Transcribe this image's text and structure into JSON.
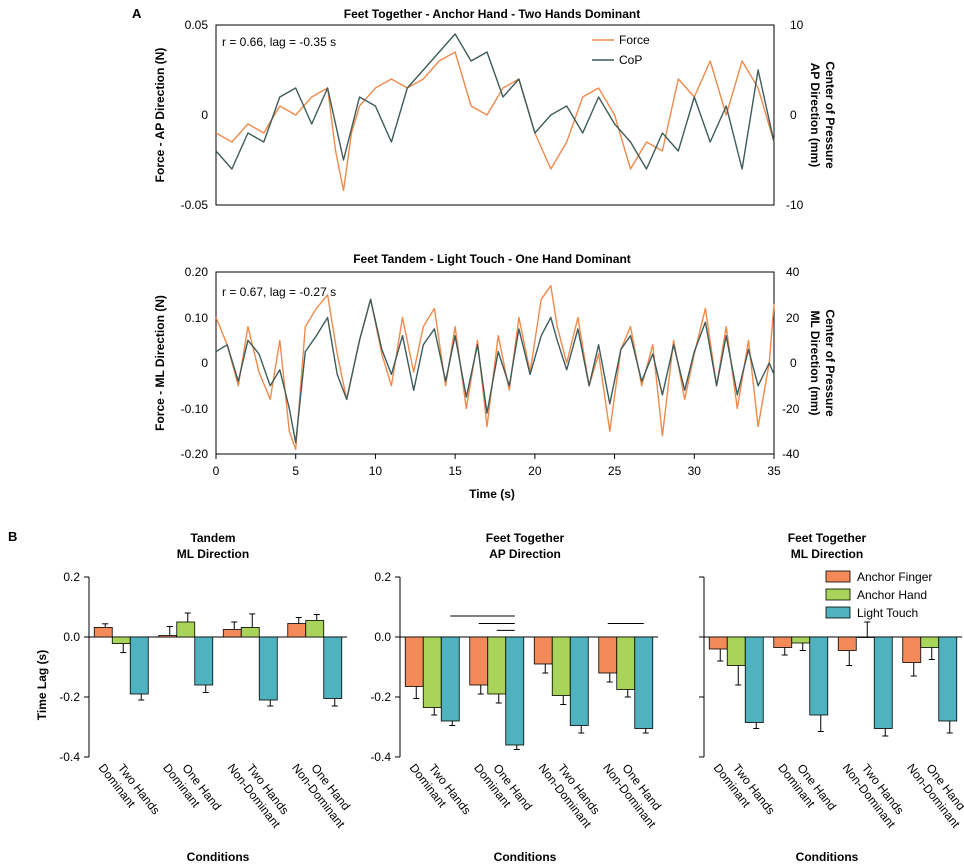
{
  "panel_labels": {
    "a": "A",
    "b": "B"
  },
  "colors": {
    "force": "#f08a4b",
    "cop": "#3e5c5b",
    "anchor_finger": "#f4895a",
    "anchor_hand": "#a9d45b",
    "light_touch": "#4fb3bf",
    "axis": "#000000"
  },
  "chart_data": [
    {
      "type": "line",
      "title": "Feet Together - Anchor Hand - Two Hands Dominant",
      "annotation": "r = 0.66, lag = -0.35 s",
      "ylabel_left": "Force - AP Direction (N)",
      "ylabel_right": [
        "Center of Pressure",
        "AP Direction (mm)"
      ],
      "ylim_left": [
        -0.05,
        0.05
      ],
      "ylim_right": [
        -10,
        10
      ],
      "yticks_left": [
        "0.05",
        "0",
        "-0.05"
      ],
      "yticks_right": [
        "10",
        "0",
        "-10"
      ],
      "xlim": [
        0,
        35
      ],
      "legend": [
        "Force",
        "CoP"
      ],
      "series": [
        {
          "name": "Force",
          "axis": "left",
          "t": [
            0,
            1,
            2,
            3,
            4,
            5,
            6,
            7,
            7.5,
            8,
            8.5,
            9,
            10,
            11,
            12,
            13,
            14,
            15,
            16,
            17,
            18,
            19,
            20,
            21,
            22,
            23,
            24,
            25,
            26,
            27,
            28,
            29,
            30,
            31,
            32,
            33,
            34,
            35
          ],
          "values": [
            -0.01,
            -0.015,
            -0.005,
            -0.01,
            0.005,
            0.0,
            0.01,
            0.015,
            -0.02,
            -0.042,
            -0.01,
            0.005,
            0.015,
            0.02,
            0.015,
            0.02,
            0.03,
            0.035,
            0.005,
            0.0,
            0.015,
            0.02,
            -0.01,
            -0.03,
            -0.015,
            0.01,
            0.015,
            0.0,
            -0.03,
            -0.015,
            -0.02,
            0.02,
            0.01,
            0.03,
            0.0,
            0.03,
            0.015,
            -0.015
          ]
        },
        {
          "name": "CoP",
          "axis": "right",
          "t": [
            0,
            1,
            2,
            3,
            4,
            5,
            6,
            7,
            8,
            9,
            10,
            11,
            12,
            13,
            14,
            15,
            16,
            17,
            18,
            19,
            20,
            21,
            22,
            23,
            24,
            25,
            26,
            27,
            28,
            29,
            30,
            31,
            32,
            33,
            34,
            35
          ],
          "values": [
            -4,
            -6,
            -2,
            -3,
            2,
            3,
            -1,
            3,
            -5,
            2,
            1,
            -3,
            3,
            5,
            7,
            9,
            6,
            7,
            2,
            4,
            -2,
            0,
            1,
            -2,
            2,
            -1,
            -3,
            -6,
            -2,
            -4,
            2,
            -3,
            1,
            -6,
            5,
            -3
          ]
        }
      ]
    },
    {
      "type": "line",
      "title": "Feet Tandem - Light Touch - One Hand Dominant",
      "annotation": "r = 0.67, lag = -0.27 s",
      "ylabel_left": "Force - ML Direction (N)",
      "ylabel_right": [
        "Center of Pressure",
        "ML Direction (mm)"
      ],
      "ylim_left": [
        -0.2,
        0.2
      ],
      "ylim_right": [
        -40,
        40
      ],
      "yticks_left": [
        "0.20",
        "0.10",
        "0",
        "-0.10",
        "-0.20"
      ],
      "yticks_right": [
        "40",
        "20",
        "0",
        "-20",
        "-40"
      ],
      "xlim": [
        0,
        35
      ],
      "xlabel": "Time (s)",
      "xticks": [
        "0",
        "5",
        "10",
        "15",
        "20",
        "25",
        "30",
        "35"
      ],
      "series": [
        {
          "name": "Force",
          "axis": "left",
          "t": [
            0,
            0.7,
            1.4,
            2,
            2.7,
            3.4,
            4,
            4.6,
            5,
            5.6,
            6.3,
            7,
            7.6,
            8.2,
            9,
            9.7,
            10.4,
            11,
            11.7,
            12.4,
            13,
            13.7,
            14.4,
            15,
            15.7,
            16.4,
            17,
            17.7,
            18.4,
            19,
            19.7,
            20.4,
            21,
            21.4,
            22,
            22.7,
            23.4,
            24,
            24.7,
            25.4,
            26,
            26.7,
            27.4,
            28,
            28.7,
            29.4,
            30,
            30.7,
            31.4,
            32,
            32.7,
            33.4,
            34,
            34.7,
            35
          ],
          "values": [
            0.1,
            0.04,
            -0.05,
            0.08,
            -0.02,
            -0.08,
            0.05,
            -0.15,
            -0.19,
            0.08,
            0.12,
            0.15,
            0.02,
            -0.08,
            0.05,
            0.14,
            0.02,
            -0.05,
            0.1,
            -0.02,
            0.08,
            0.12,
            -0.05,
            0.08,
            -0.1,
            0.05,
            -0.14,
            0.06,
            -0.06,
            0.1,
            -0.02,
            0.14,
            0.17,
            0.08,
            0.0,
            0.1,
            -0.05,
            0.02,
            -0.15,
            0.03,
            0.08,
            -0.05,
            0.04,
            -0.16,
            0.05,
            -0.08,
            0.02,
            0.12,
            -0.05,
            0.08,
            -0.1,
            0.05,
            -0.14,
            0.0,
            0.13
          ]
        },
        {
          "name": "CoP",
          "axis": "right",
          "t": [
            0,
            0.7,
            1.4,
            2,
            2.7,
            3.4,
            4,
            4.6,
            5,
            5.6,
            6.3,
            7,
            7.6,
            8.2,
            9,
            9.7,
            10.4,
            11,
            11.7,
            12.4,
            13,
            13.7,
            14.4,
            15,
            15.7,
            16.4,
            17,
            17.7,
            18.4,
            19,
            19.7,
            20.4,
            21,
            21.4,
            22,
            22.7,
            23.4,
            24,
            24.7,
            25.4,
            26,
            26.7,
            27.4,
            28,
            28.7,
            29.4,
            30,
            30.7,
            31.4,
            32,
            32.7,
            33.4,
            34,
            34.7,
            35
          ],
          "values": [
            5,
            8,
            -8,
            10,
            4,
            -10,
            -3,
            -20,
            -35,
            5,
            12,
            20,
            -5,
            -16,
            10,
            28,
            6,
            -5,
            12,
            -12,
            8,
            15,
            -8,
            12,
            -15,
            8,
            -22,
            5,
            -10,
            15,
            -5,
            12,
            20,
            10,
            -3,
            15,
            -10,
            8,
            -18,
            6,
            12,
            -8,
            4,
            -14,
            8,
            -12,
            5,
            18,
            -10,
            12,
            -14,
            6,
            -10,
            0,
            -5
          ]
        }
      ]
    },
    {
      "type": "bar",
      "title": [
        "Tandem",
        "ML Direction"
      ],
      "ylabel": "Time Lag (s)",
      "xlabel": "Conditions",
      "ylim": [
        -0.4,
        0.2
      ],
      "yticks": [
        "0.2",
        "0.0",
        "-0.2",
        "-0.4"
      ],
      "categories": [
        [
          "Two Hands",
          "Dominant"
        ],
        [
          "One Hand",
          "Dominant"
        ],
        [
          "Two Hands",
          "Non-Dominant"
        ],
        [
          "One Hand",
          "Non-Dominant"
        ]
      ],
      "series": [
        {
          "name": "Anchor Finger",
          "values": [
            0.032,
            0.005,
            0.025,
            0.045
          ],
          "errors": [
            0.012,
            0.03,
            0.025,
            0.02
          ]
        },
        {
          "name": "Anchor Hand",
          "values": [
            -0.022,
            0.05,
            0.032,
            0.055
          ],
          "errors": [
            0.03,
            0.03,
            0.045,
            0.02
          ]
        },
        {
          "name": "Light Touch",
          "values": [
            -0.19,
            -0.16,
            -0.21,
            -0.205
          ],
          "errors": [
            0.02,
            0.025,
            0.02,
            0.025
          ]
        }
      ],
      "significance_lines": []
    },
    {
      "type": "bar",
      "title": [
        "Feet Together",
        "AP Direction"
      ],
      "xlabel": "Conditions",
      "ylim": [
        -0.4,
        0.2
      ],
      "yticks": [
        "0.2",
        "0.0",
        "-0.2",
        "-0.4"
      ],
      "categories": [
        [
          "Two Hands",
          "Dominant"
        ],
        [
          "One Hand",
          "Dominant"
        ],
        [
          "Two Hands",
          "Non-Dominant"
        ],
        [
          "One Hand",
          "Non-Dominant"
        ]
      ],
      "series": [
        {
          "name": "Anchor Finger",
          "values": [
            -0.165,
            -0.16,
            -0.09,
            -0.12
          ],
          "errors": [
            0.04,
            0.03,
            0.03,
            0.03
          ]
        },
        {
          "name": "Anchor Hand",
          "values": [
            -0.235,
            -0.19,
            -0.195,
            -0.175
          ],
          "errors": [
            0.025,
            0.03,
            0.03,
            0.025
          ]
        },
        {
          "name": "Light Touch",
          "values": [
            -0.28,
            -0.36,
            -0.295,
            -0.305
          ],
          "errors": [
            0.015,
            0.015,
            0.025,
            0.015
          ]
        }
      ],
      "significance_lines": [
        {
          "y": 0.07,
          "from": [
            0,
            2
          ],
          "to": [
            1,
            2
          ]
        },
        {
          "y": 0.045,
          "from": [
            1,
            0
          ],
          "to": [
            1,
            2
          ]
        },
        {
          "y": 0.022,
          "from": [
            1,
            1
          ],
          "to": [
            1,
            2
          ]
        },
        {
          "y": 0.045,
          "from": [
            3,
            0
          ],
          "to": [
            3,
            2
          ]
        }
      ]
    },
    {
      "type": "bar",
      "title": [
        "Feet Together",
        "ML Direction"
      ],
      "xlabel": "Conditions",
      "ylim": [
        -0.4,
        0.2
      ],
      "yticks": [
        "0.2",
        "0.0",
        "-0.2",
        "-0.4"
      ],
      "legend": [
        "Anchor Finger",
        "Anchor Hand",
        "Light Touch"
      ],
      "categories": [
        [
          "Two Hands",
          "Dominant"
        ],
        [
          "One Hand",
          "Dominant"
        ],
        [
          "Two Hands",
          "Non-Dominant"
        ],
        [
          "One Hand",
          "Non-Dominant"
        ]
      ],
      "series": [
        {
          "name": "Anchor Finger",
          "values": [
            -0.04,
            -0.035,
            -0.045,
            -0.085
          ],
          "errors": [
            0.04,
            0.025,
            0.05,
            0.045
          ]
        },
        {
          "name": "Anchor Hand",
          "values": [
            -0.095,
            -0.02,
            0.0,
            -0.035
          ],
          "errors": [
            0.065,
            0.025,
            0.05,
            0.04
          ]
        },
        {
          "name": "Light Touch",
          "values": [
            -0.285,
            -0.26,
            -0.305,
            -0.28
          ],
          "errors": [
            0.02,
            0.055,
            0.025,
            0.04
          ]
        }
      ],
      "significance_lines": []
    }
  ]
}
